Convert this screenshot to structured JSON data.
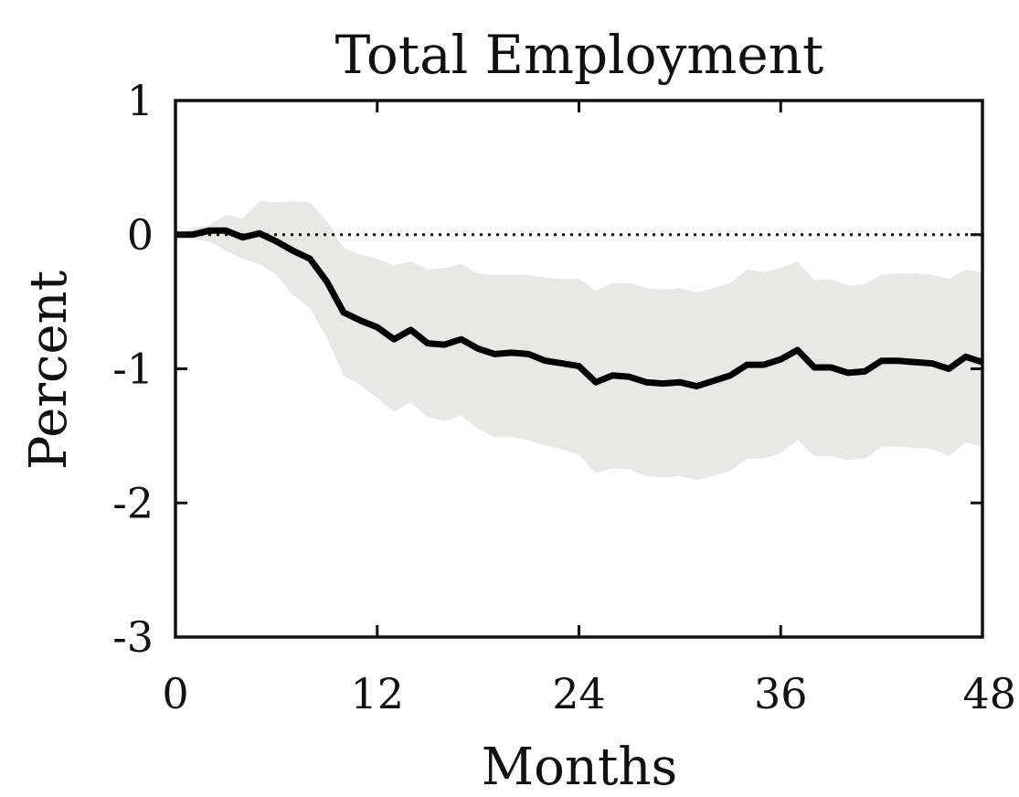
{
  "chart_data": {
    "type": "line",
    "title": "Total Employment",
    "xlabel": "Months",
    "ylabel": "Percent",
    "xlim": [
      0,
      48
    ],
    "ylim": [
      -3,
      1
    ],
    "xticks": [
      0,
      12,
      24,
      36,
      48
    ],
    "xtick_labels": [
      "0",
      "12",
      "24",
      "36",
      "48"
    ],
    "yticks": [
      1,
      0,
      -1,
      -2,
      -3
    ],
    "ytick_labels": [
      "1",
      "0",
      "-1",
      "-2",
      "-3"
    ],
    "grid": false,
    "reference_line": {
      "y": 0,
      "style": "dotted"
    },
    "colors": {
      "line": "#000000",
      "band": "#e8e8e6",
      "axis": "#111111"
    },
    "x": [
      0,
      1,
      2,
      3,
      4,
      5,
      6,
      7,
      8,
      9,
      10,
      11,
      12,
      13,
      14,
      15,
      16,
      17,
      18,
      19,
      20,
      21,
      22,
      23,
      24,
      25,
      26,
      27,
      28,
      29,
      30,
      31,
      32,
      33,
      34,
      35,
      36,
      37,
      38,
      39,
      40,
      41,
      42,
      43,
      44,
      45,
      46,
      47,
      48
    ],
    "series": [
      {
        "values": [
          0.0,
          0.0,
          0.03,
          0.03,
          -0.02,
          0.01,
          -0.05,
          -0.12,
          -0.18,
          -0.35,
          -0.58,
          -0.64,
          -0.69,
          -0.78,
          -0.71,
          -0.81,
          -0.82,
          -0.78,
          -0.85,
          -0.89,
          -0.88,
          -0.89,
          -0.94,
          -0.96,
          -0.98,
          -1.1,
          -1.05,
          -1.06,
          -1.1,
          -1.11,
          -1.1,
          -1.13,
          -1.09,
          -1.05,
          -0.97,
          -0.97,
          -0.93,
          -0.86,
          -0.99,
          -0.99,
          -1.03,
          -1.02,
          -0.94,
          -0.94,
          -0.95,
          -0.96,
          -1.0,
          -0.91,
          -0.95
        ]
      }
    ],
    "band": {
      "upper": [
        0.0,
        0.05,
        0.07,
        0.15,
        0.12,
        0.25,
        0.24,
        0.25,
        0.24,
        0.1,
        -0.1,
        -0.15,
        -0.18,
        -0.23,
        -0.2,
        -0.26,
        -0.25,
        -0.22,
        -0.29,
        -0.3,
        -0.3,
        -0.3,
        -0.32,
        -0.33,
        -0.33,
        -0.42,
        -0.36,
        -0.36,
        -0.4,
        -0.41,
        -0.4,
        -0.43,
        -0.4,
        -0.36,
        -0.26,
        -0.28,
        -0.25,
        -0.2,
        -0.34,
        -0.33,
        -0.38,
        -0.37,
        -0.3,
        -0.29,
        -0.29,
        -0.3,
        -0.33,
        -0.26,
        -0.28
      ],
      "lower": [
        0.0,
        -0.03,
        -0.05,
        -0.12,
        -0.18,
        -0.22,
        -0.3,
        -0.45,
        -0.55,
        -0.77,
        -1.05,
        -1.12,
        -1.22,
        -1.32,
        -1.25,
        -1.36,
        -1.39,
        -1.35,
        -1.45,
        -1.51,
        -1.51,
        -1.53,
        -1.57,
        -1.6,
        -1.64,
        -1.78,
        -1.74,
        -1.75,
        -1.8,
        -1.81,
        -1.8,
        -1.83,
        -1.8,
        -1.76,
        -1.67,
        -1.67,
        -1.63,
        -1.53,
        -1.65,
        -1.65,
        -1.68,
        -1.67,
        -1.58,
        -1.58,
        -1.59,
        -1.6,
        -1.65,
        -1.55,
        -1.58
      ]
    }
  }
}
